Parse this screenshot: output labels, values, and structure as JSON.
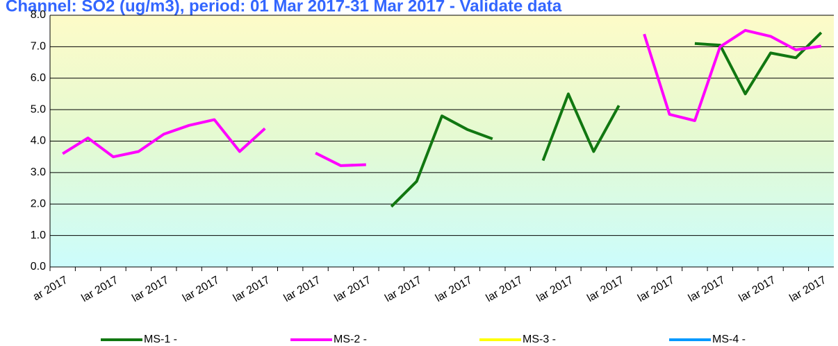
{
  "chart_data": {
    "type": "line",
    "title": "Channel: SO2 (ug/m3), period: 01 Mar 2017-31 Mar 2017 - Validate data",
    "categories": [
      "ar 2017",
      null,
      "lar 2017",
      null,
      "lar 2017",
      null,
      "lar 2017",
      null,
      "lar 2017",
      null,
      "lar 2017",
      null,
      "lar 2017",
      null,
      "lar 2017",
      null,
      "lar 2017",
      null,
      "lar 2017",
      null,
      "lar 2017",
      null,
      "lar 2017",
      null,
      "lar 2017",
      null,
      "lar 2017",
      null,
      "lar 2017",
      null,
      "lar 2017"
    ],
    "series": [
      {
        "name": "MS-1 -",
        "color": "#117711",
        "values": [
          null,
          null,
          null,
          null,
          null,
          null,
          null,
          null,
          null,
          null,
          null,
          null,
          null,
          1.92,
          2.72,
          4.8,
          4.37,
          4.07,
          null,
          3.38,
          5.5,
          3.67,
          5.13,
          null,
          null,
          7.1,
          7.05,
          5.5,
          6.8,
          6.65,
          7.45
        ]
      },
      {
        "name": "MS-2 -",
        "color": "#ff00ff",
        "values": [
          3.6,
          4.1,
          3.5,
          3.67,
          4.22,
          4.5,
          4.68,
          3.67,
          4.4,
          null,
          3.62,
          3.22,
          3.25,
          null,
          null,
          null,
          null,
          null,
          null,
          null,
          null,
          null,
          null,
          7.4,
          4.85,
          4.65,
          7.0,
          7.52,
          7.33,
          6.9,
          7.02
        ]
      },
      {
        "name": "MS-3 -",
        "color": "#ffff00",
        "values": [
          null,
          null,
          null,
          null,
          null,
          null,
          null,
          null,
          null,
          null,
          null,
          null,
          null,
          null,
          null,
          null,
          null,
          null,
          null,
          null,
          null,
          null,
          null,
          null,
          null,
          null,
          null,
          null,
          null,
          null,
          null
        ]
      },
      {
        "name": "MS-4 -",
        "color": "#0099ff",
        "values": [
          null,
          null,
          null,
          null,
          null,
          null,
          null,
          null,
          null,
          null,
          null,
          null,
          null,
          null,
          null,
          null,
          null,
          null,
          null,
          null,
          null,
          null,
          null,
          null,
          null,
          null,
          null,
          null,
          null,
          null,
          null
        ]
      }
    ],
    "ylim": [
      0,
      8
    ],
    "yticks": [
      {
        "value": 0,
        "label": "0.0"
      },
      {
        "value": 1,
        "label": "1.0"
      },
      {
        "value": 2,
        "label": "2.0"
      },
      {
        "value": 3,
        "label": "3.0"
      },
      {
        "value": 4,
        "label": "4.0"
      },
      {
        "value": 5,
        "label": "5.0"
      },
      {
        "value": 6,
        "label": "6.0"
      },
      {
        "value": 7,
        "label": "7.0"
      },
      {
        "value": 8,
        "label": "8.0"
      }
    ],
    "grid": true
  }
}
